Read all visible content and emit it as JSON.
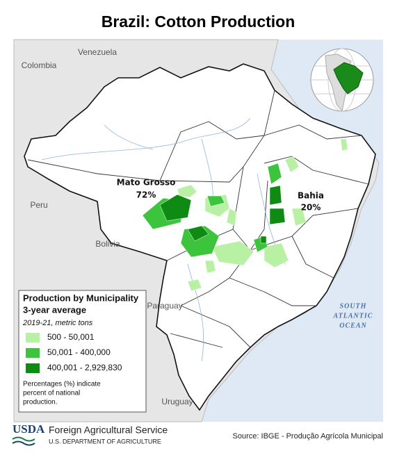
{
  "title": "Brazil: Cotton Production",
  "countries": [
    "Venezuela",
    "Colombia",
    "Peru",
    "Bolivia",
    "Paraguay",
    "Uruguay"
  ],
  "states": [
    {
      "name": "Mato Grosso",
      "share": "72%"
    },
    {
      "name": "Bahia",
      "share": "20%"
    }
  ],
  "ocean": [
    "SOUTH",
    "ATLANTIC",
    "OCEAN"
  ],
  "legend": {
    "title": [
      "Production by Municipality",
      "3-year average"
    ],
    "subtitle": "2019-21, metric tons",
    "items": [
      {
        "label": "500 - 50,001",
        "color": "#b8f0a4"
      },
      {
        "label": "50,001 - 400,000",
        "color": "#3cc43c"
      },
      {
        "label": "400,001 - 2,929,830",
        "color": "#0f8a12"
      }
    ],
    "note": [
      "Percentages (%) indicate",
      "percent of national",
      "production."
    ]
  },
  "footer": {
    "agency_abbr": "USDA",
    "agency": "Foreign Agricultural Service",
    "department": "U.S. DEPARTMENT OF AGRICULTURE",
    "source": "Source: IBGE - Produção Agrícola Municipal"
  }
}
